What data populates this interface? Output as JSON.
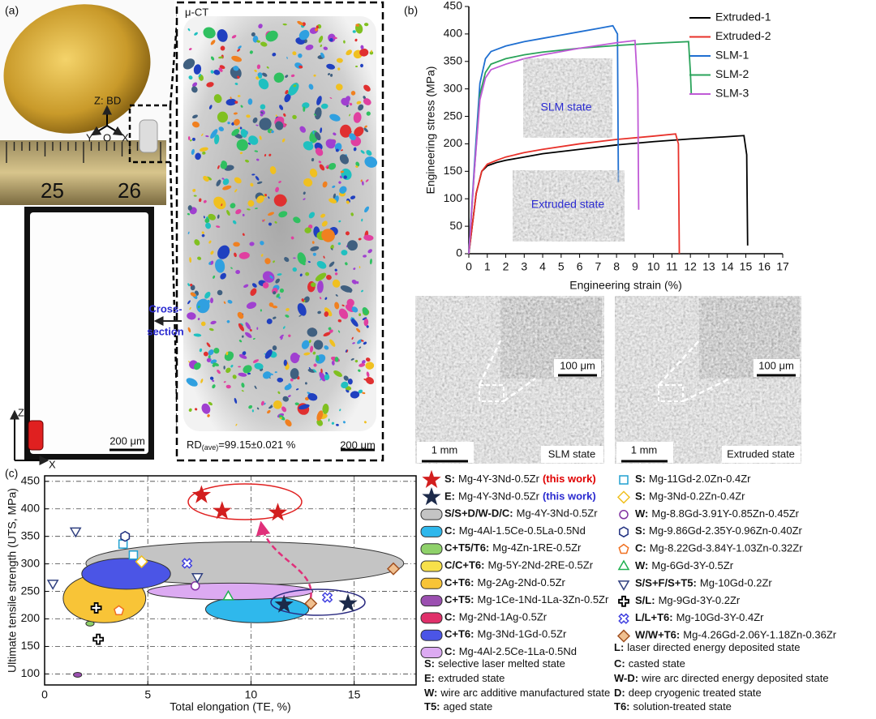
{
  "panel_a": {
    "label": "(a)",
    "axes_label": "Z: BD",
    "axis_y": "Y",
    "axis_o": "O",
    "axis_x": "X",
    "ruler_left": "25",
    "ruler_right": "26",
    "ct_label": "μ-CT",
    "arrow_label": [
      "Cross-",
      "section"
    ],
    "scale_section": "200 μm",
    "scale_ct": "200 μm",
    "rd_prefix": "RD",
    "rd_sub": "(ave)",
    "rd_value": "=99.15±0.021 %",
    "coord_z": "Z",
    "coord_x": "X"
  },
  "panel_b": {
    "label": "(b)",
    "inset_slm": "SLM state",
    "inset_extruded": "Extruded state",
    "sem": [
      {
        "zoom_scale": "100 μm",
        "scale": "1 mm",
        "caption": "SLM state"
      },
      {
        "zoom_scale": "100 μm",
        "scale": "1 mm",
        "caption": "Extruded state"
      }
    ]
  },
  "panel_c": {
    "label": "(c)"
  },
  "chart_data": [
    {
      "type": "line",
      "xlabel": "Engineering strain (%)",
      "ylabel": "Engineering stress (MPa)",
      "xlim": [
        0,
        17
      ],
      "ylim": [
        0,
        450
      ],
      "xticks": [
        0,
        1,
        2,
        3,
        4,
        5,
        6,
        7,
        8,
        9,
        10,
        11,
        12,
        13,
        14,
        15,
        16,
        17
      ],
      "yticks": [
        0,
        50,
        100,
        150,
        200,
        250,
        300,
        350,
        400,
        450
      ],
      "legend": "upper right",
      "series": [
        {
          "name": "Extruded-1",
          "color": "#000000",
          "x": [
            0,
            0.4,
            0.7,
            1,
            1.5,
            2,
            3,
            4,
            6,
            8,
            10,
            12,
            14,
            14.9,
            15.05,
            15.1
          ],
          "values": [
            0,
            110,
            150,
            160,
            166,
            170,
            176,
            182,
            190,
            198,
            204,
            209,
            213,
            215,
            180,
            15
          ]
        },
        {
          "name": "Extruded-2",
          "color": "#e8312a",
          "x": [
            0,
            0.4,
            0.7,
            1,
            1.5,
            2,
            3,
            4,
            6,
            8,
            10,
            11.2,
            11.35,
            11.4
          ],
          "values": [
            0,
            110,
            150,
            163,
            170,
            176,
            184,
            190,
            200,
            208,
            214,
            218,
            200,
            0
          ]
        },
        {
          "name": "SLM-1",
          "color": "#1f6fd1",
          "x": [
            0,
            0.3,
            0.6,
            0.9,
            1.2,
            2,
            3,
            4,
            5,
            6,
            7,
            7.8,
            8.05,
            8.1
          ],
          "values": [
            0,
            160,
            310,
            355,
            368,
            378,
            386,
            392,
            398,
            404,
            410,
            415,
            400,
            130
          ]
        },
        {
          "name": "SLM-2",
          "color": "#2aa35a",
          "x": [
            0,
            0.3,
            0.6,
            0.9,
            1.2,
            2,
            3,
            4,
            6,
            8,
            10,
            11.9,
            12,
            12.05
          ],
          "values": [
            0,
            150,
            290,
            330,
            345,
            355,
            362,
            367,
            374,
            379,
            383,
            386,
            330,
            290
          ]
        },
        {
          "name": "SLM-3",
          "color": "#c05ad6",
          "x": [
            0,
            0.3,
            0.6,
            0.9,
            1.2,
            2,
            3,
            4,
            5,
            6,
            7,
            8,
            9,
            9.15,
            9.2
          ],
          "values": [
            0,
            150,
            280,
            320,
            335,
            345,
            355,
            362,
            368,
            374,
            379,
            384,
            388,
            300,
            80
          ]
        }
      ]
    },
    {
      "type": "scatter",
      "xlabel": "Total elongation (TE, %)",
      "ylabel": "Ultimate tensile strength (UTS, MPa)",
      "xlim": [
        0,
        18
      ],
      "ylim": [
        80,
        460
      ],
      "xticks": [
        0,
        5,
        10,
        15
      ],
      "yticks": [
        100,
        150,
        200,
        250,
        300,
        350,
        400,
        450
      ],
      "grid": true,
      "series": [
        {
          "code": "S:",
          "name": "Mg-4Y-3Nd-0.5Zr",
          "note": "(this work)",
          "note_color": "#e00000",
          "marker": "star",
          "color": "#d21f1f",
          "x": [
            7.6,
            8.6,
            11.3
          ],
          "values": [
            425,
            396,
            393
          ]
        },
        {
          "code": "E:",
          "name": "Mg-4Y-3Nd-0.5Zr",
          "note": "(this work)",
          "note_color": "#2a2ad0",
          "marker": "star",
          "color": "#1c2a4a",
          "x": [
            11.6,
            14.7
          ],
          "values": [
            226,
            228
          ]
        },
        {
          "code": "S/S+D/W-D/C:",
          "name": "Mg-4Y-3Nd-0.5Zr",
          "marker": "ellipse",
          "color": "#c4c4c4",
          "xrange": [
            2,
            17.4
          ],
          "yrange": [
            262,
            340
          ]
        },
        {
          "code": "C:",
          "name": "Mg-4Al-1.5Ce-0.5La-0.5Nd",
          "marker": "ellipse",
          "color": "#2fb8ec",
          "xrange": [
            7.8,
            12.8
          ],
          "yrange": [
            193,
            242
          ]
        },
        {
          "code": "C+T5/T6:",
          "name": "Mg-4Zn-1RE-0.5Zr",
          "marker": "ellipse",
          "color": "#8fd16a",
          "xrange": [
            2,
            2.4
          ],
          "yrange": [
            187,
            196
          ]
        },
        {
          "code": "C/C+T6:",
          "name": "Mg-5Y-2Nd-2RE-0.5Zr",
          "marker": "ellipse",
          "color": "#f7e04a",
          "xrange": [
            3.3,
            4.3
          ],
          "yrange": [
            246,
            258
          ]
        },
        {
          "code": "C+T6:",
          "name": "Mg-2Ag-2Nd-0.5Zr",
          "marker": "ellipse",
          "color": "#f8c437",
          "xrange": [
            0.9,
            4.9
          ],
          "yrange": [
            193,
            282
          ]
        },
        {
          "code": "C+T5:",
          "name": "Mg-1Ce-1Nd-1La-3Zn-0.5Zr",
          "marker": "ellipse",
          "color": "#9b4fb0",
          "xrange": [
            1.4,
            1.8
          ],
          "yrange": [
            96,
            101
          ]
        },
        {
          "code": "C:",
          "name": "Mg-2Nd-1Ag-0.5Zr",
          "marker": "ellipse",
          "color": "#e0306a",
          "xrange": [
            3.3,
            4.4
          ],
          "yrange": [
            257,
            267
          ]
        },
        {
          "code": "C+T6:",
          "name": "Mg-3Nd-1Gd-0.5Zr",
          "marker": "ellipse",
          "color": "#4b55e6",
          "xrange": [
            1.8,
            6.1
          ],
          "yrange": [
            254,
            310
          ]
        },
        {
          "code": "C:",
          "name": "Mg-4Al-2.5Ce-1La-0.5Nd",
          "marker": "ellipse",
          "color": "#dcaaf2",
          "xrange": [
            5,
            13
          ],
          "yrange": [
            235,
            265
          ]
        },
        {
          "code": "S:",
          "name": "Mg-11Gd-2.0Zn-0.4Zr",
          "marker": "square",
          "color": "#20a0d0",
          "x": [
            3.8,
            4.3
          ],
          "values": [
            336,
            316
          ]
        },
        {
          "code": "S:",
          "name": "Mg-3Nd-0.2Zn-0.4Zr",
          "marker": "diamond",
          "color": "#f0c020",
          "x": [
            4.7
          ],
          "values": [
            304
          ]
        },
        {
          "code": "W:",
          "name": "Mg-8.8Gd-3.91Y-0.85Zn-0.45Zr",
          "marker": "circle",
          "color": "#8030a0",
          "x": [
            7.3
          ],
          "values": [
            260
          ]
        },
        {
          "code": "S:",
          "name": "Mg-9.86Gd-2.35Y-0.96Zn-0.40Zr",
          "marker": "hexagon",
          "color": "#203080",
          "x": [
            3.9
          ],
          "values": [
            350
          ]
        },
        {
          "code": "C:",
          "name": "Mg-8.22Gd-3.84Y-1.03Zn-0.32Zr",
          "marker": "pentagon",
          "color": "#f07020",
          "x": [
            3.6
          ],
          "values": [
            215
          ]
        },
        {
          "code": "W:",
          "name": "Mg-6Gd-3Y-0.5Zr",
          "marker": "triangle",
          "color": "#20b050",
          "x": [
            8.9
          ],
          "values": [
            240
          ]
        },
        {
          "code": "S/S+F/S+T5:",
          "name": "Mg-10Gd-0.2Zr",
          "marker": "tridown",
          "color": "#304080",
          "x": [
            1.5,
            0.4,
            7.4
          ],
          "values": [
            360,
            265,
            277
          ]
        },
        {
          "code": "S/L:",
          "name": "Mg-9Gd-3Y-0.2Zr",
          "marker": "plus",
          "color": "#000000",
          "x": [
            2.5,
            2.6
          ],
          "values": [
            220,
            163
          ]
        },
        {
          "code": "L/L+T6:",
          "name": "Mg-10Gd-3Y-0.4Zr",
          "marker": "cross",
          "color": "#4040e0",
          "x": [
            6.9,
            13.7
          ],
          "values": [
            301,
            239
          ]
        },
        {
          "code": "W/W+T6:",
          "name": "Mg-4.26Gd-2.06Y-1.18Zn-0.36Zr",
          "marker": "diamond",
          "color": "#a05020",
          "fill": "#f0c090",
          "x": [
            12.9,
            16.9
          ],
          "values": [
            228,
            291
          ]
        }
      ]
    }
  ],
  "abbreviations": [
    {
      "code": "L:",
      "text": "laser directed energy deposited state"
    },
    {
      "code": "S:",
      "text": "selective laser melted state"
    },
    {
      "code": "C:",
      "text": "casted state"
    },
    {
      "code": "E:",
      "text": "extruded state"
    },
    {
      "code": "W-D:",
      "text": "wire arc directed energy deposited state"
    },
    {
      "code": "W:",
      "text": "wire arc additive manufactured state"
    },
    {
      "code": "D:",
      "text": "deep cryogenic treated state"
    },
    {
      "code": "T5:",
      "text": "aged state"
    },
    {
      "code": "T6:",
      "text": "solution-treated state"
    }
  ]
}
